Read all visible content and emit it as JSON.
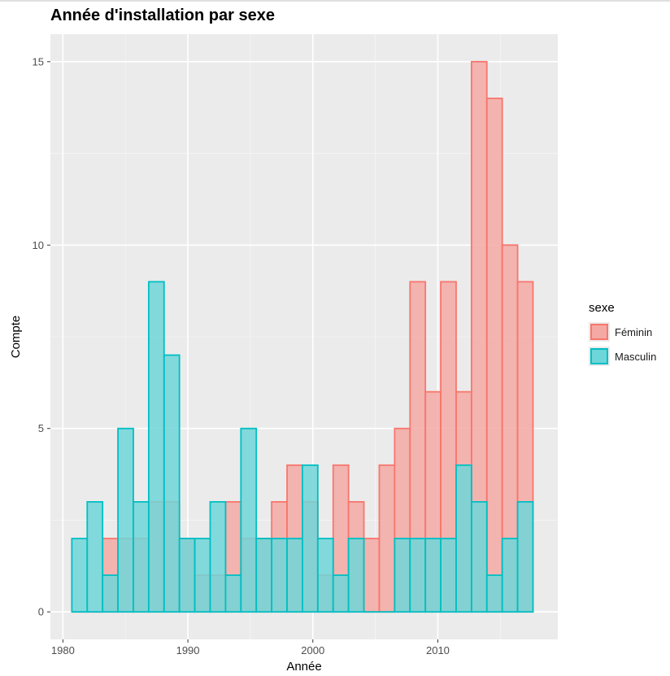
{
  "chart_data": {
    "type": "bar",
    "title": "Année d'installation par sexe",
    "xlabel": "Année",
    "ylabel": "Compte",
    "xlim": [
      1979.0,
      2019.6
    ],
    "ylim": [
      -0.75,
      15.75
    ],
    "x_ticks": [
      1980,
      1990,
      2000,
      2010
    ],
    "y_ticks": [
      0,
      5,
      10,
      15
    ],
    "grid": true,
    "bin_width": 1.23,
    "x": [
      1981.33,
      1982.56,
      1983.79,
      1985.02,
      1986.25,
      1987.48,
      1988.71,
      1989.94,
      1991.17,
      1992.4,
      1993.63,
      1994.86,
      1996.09,
      1997.32,
      1998.55,
      1999.78,
      2001.01,
      2002.24,
      2003.47,
      2004.7,
      2005.93,
      2007.16,
      2008.39,
      2009.62,
      2010.85,
      2012.08,
      2013.31,
      2014.54,
      2015.77,
      2017.0
    ],
    "series": [
      {
        "name": "Féminin",
        "color": "#F8766D",
        "fill": "#F4A9A4",
        "values": [
          0,
          0,
          2,
          2,
          2,
          3,
          3,
          2,
          1,
          1,
          3,
          2,
          2,
          3,
          4,
          3,
          1,
          4,
          3,
          2,
          4,
          5,
          9,
          6,
          9,
          6,
          15,
          14,
          10,
          9
        ]
      },
      {
        "name": "Masculin",
        "color": "#00BFC4",
        "fill": "#6ED6D8",
        "values": [
          2,
          3,
          1,
          5,
          3,
          9,
          7,
          2,
          2,
          3,
          1,
          5,
          2,
          2,
          2,
          4,
          2,
          1,
          2,
          0,
          0,
          2,
          2,
          2,
          2,
          4,
          3,
          1,
          2,
          3
        ]
      }
    ],
    "legend": {
      "title": "sexe",
      "position": "right"
    }
  }
}
